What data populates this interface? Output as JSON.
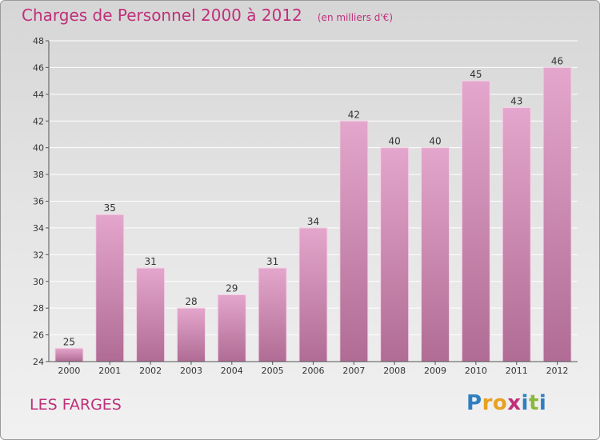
{
  "header": {
    "title": "Charges de Personnel 2000 à 2012",
    "unit": "(en milliers d'€)"
  },
  "commune": "LES FARGES",
  "logo": {
    "text": "Proxiti",
    "letters": [
      {
        "char": "P",
        "color": "#2f7fc0"
      },
      {
        "char": "r",
        "color": "#e8a020"
      },
      {
        "char": "o",
        "color": "#e8a020"
      },
      {
        "char": "x",
        "color": "#c0307a"
      },
      {
        "char": "i",
        "color": "#2f7fc0"
      },
      {
        "char": "t",
        "color": "#8ab83c"
      },
      {
        "char": "i",
        "color": "#2f7fc0"
      }
    ]
  },
  "chart_data": {
    "type": "bar",
    "title": "Charges de Personnel 2000 à 2012",
    "subtitle": "(en milliers d'€)",
    "categories": [
      "2000",
      "2001",
      "2002",
      "2003",
      "2004",
      "2005",
      "2006",
      "2007",
      "2008",
      "2009",
      "2010",
      "2011",
      "2012"
    ],
    "values": [
      25,
      35,
      31,
      28,
      29,
      31,
      34,
      42,
      40,
      40,
      45,
      43,
      46
    ],
    "ylim": [
      24,
      48
    ],
    "yticks": [
      24,
      26,
      28,
      30,
      32,
      34,
      36,
      38,
      40,
      42,
      44,
      46,
      48
    ],
    "grid": true,
    "colors": {
      "bar_top": "#e4a6cc",
      "bar_bottom": "#b06c94",
      "bar_edge": "#f3d2e6",
      "grid": "#ffffff",
      "axis": "#555555",
      "accent": "#c0307a"
    }
  }
}
